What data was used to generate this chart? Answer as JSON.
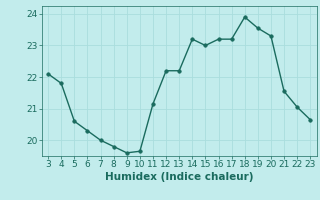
{
  "x": [
    3,
    4,
    5,
    6,
    7,
    8,
    9,
    10,
    11,
    12,
    13,
    14,
    15,
    16,
    17,
    18,
    19,
    20,
    21,
    22,
    23
  ],
  "y": [
    22.1,
    21.8,
    20.6,
    20.3,
    20.0,
    19.8,
    19.6,
    19.65,
    21.15,
    22.2,
    22.2,
    23.2,
    23.0,
    23.2,
    23.2,
    23.9,
    23.55,
    23.3,
    21.55,
    21.05,
    20.65
  ],
  "line_color": "#1a6b5e",
  "bg_color": "#c2ecec",
  "grid_color": "#aadddd",
  "xlabel": "Humidex (Indice chaleur)",
  "ylim": [
    19.5,
    24.25
  ],
  "xlim": [
    2.5,
    23.5
  ],
  "yticks": [
    20,
    21,
    22,
    23,
    24
  ],
  "xticks": [
    3,
    4,
    5,
    6,
    7,
    8,
    9,
    10,
    11,
    12,
    13,
    14,
    15,
    16,
    17,
    18,
    19,
    20,
    21,
    22,
    23
  ],
  "xlabel_fontsize": 7.5,
  "tick_fontsize": 6.5,
  "marker": "o",
  "markersize": 2.5,
  "linewidth": 1.0
}
